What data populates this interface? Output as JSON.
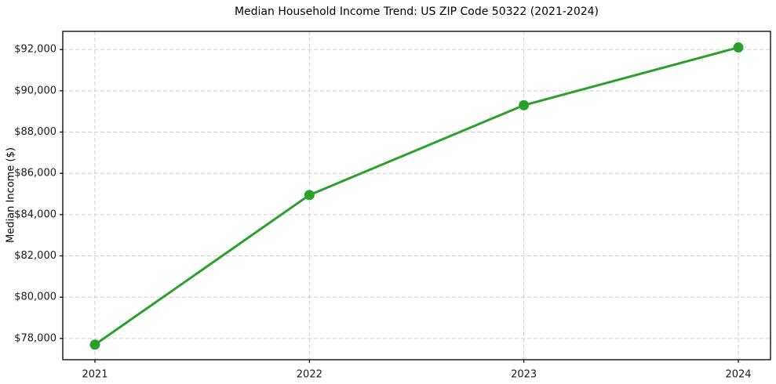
{
  "chart_data": {
    "type": "line",
    "title": "Median Household Income Trend: US ZIP Code 50322 (2021-2024)",
    "xlabel": "",
    "ylabel": "Median Income ($)",
    "x": [
      2021,
      2022,
      2023,
      2024
    ],
    "series": [
      {
        "name": "Median Household Income",
        "values": [
          77700,
          84950,
          89300,
          92100
        ],
        "color": "#2ca02c",
        "marker": "circle",
        "line_width": 3,
        "marker_radius": 6.5
      }
    ],
    "xlim": [
      2020.85,
      2024.15
    ],
    "ylim": [
      76970,
      92880
    ],
    "xticks": [
      2021,
      2022,
      2023,
      2024
    ],
    "xtick_labels": [
      "2021",
      "2022",
      "2023",
      "2024"
    ],
    "yticks": [
      78000,
      80000,
      82000,
      84000,
      86000,
      88000,
      90000,
      92000
    ],
    "ytick_labels": [
      "$78,000",
      "$80,000",
      "$82,000",
      "$84,000",
      "$86,000",
      "$88,000",
      "$90,000",
      "$92,000"
    ],
    "grid": true,
    "grid_color": "#cfcfcf",
    "grid_dash": "5 3",
    "spine_color": "#000000",
    "tick_color": "#000000",
    "tick_label_color": "#1a1a1a",
    "background_color": "#ffffff",
    "legend": "none"
  }
}
